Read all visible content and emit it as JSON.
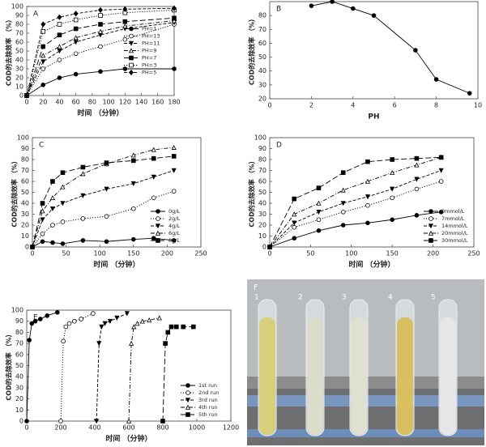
{
  "chart_data": [
    {
      "type": "line",
      "label": "A",
      "xlabel": "时间 （分钟）",
      "ylabel": "COD的去除效率 （%）",
      "x": [
        0,
        20,
        40,
        60,
        90,
        120,
        180
      ],
      "xlim": [
        0,
        180
      ],
      "ylim": [
        0,
        100
      ],
      "xticks": [
        0,
        20,
        40,
        60,
        80,
        100,
        120,
        140,
        160,
        180
      ],
      "yticks": [
        0,
        10,
        20,
        30,
        40,
        50,
        60,
        70,
        80,
        90,
        100
      ],
      "grid": false,
      "legend": "center right",
      "series": [
        {
          "name": "PH=1",
          "color": "#000000",
          "marker": "circle-filled",
          "dash": "solid",
          "values": [
            0,
            12,
            20,
            24,
            27,
            30,
            30
          ]
        },
        {
          "name": "PH=13",
          "color": "#000000",
          "marker": "circle-open",
          "dash": "dotted",
          "values": [
            0,
            30,
            40,
            47,
            55,
            63,
            80
          ]
        },
        {
          "name": "PH=11",
          "color": "#000000",
          "marker": "triangle-down-filled",
          "dash": "dashed",
          "values": [
            0,
            38,
            50,
            60,
            68,
            75,
            82
          ]
        },
        {
          "name": "PH=9",
          "color": "#000000",
          "marker": "triangle-up-open",
          "dash": "dashdot",
          "values": [
            0,
            45,
            55,
            65,
            72,
            78,
            84
          ]
        },
        {
          "name": "PH=7",
          "color": "#000000",
          "marker": "square-filled",
          "dash": "longdash",
          "values": [
            0,
            55,
            68,
            75,
            80,
            83,
            87
          ]
        },
        {
          "name": "PH=3",
          "color": "#000000",
          "marker": "square-open",
          "dash": "dotted",
          "values": [
            0,
            72,
            80,
            85,
            90,
            93,
            96
          ]
        },
        {
          "name": "PH=5",
          "color": "#000000",
          "marker": "diamond-filled",
          "dash": "dashed",
          "values": [
            0,
            80,
            88,
            92,
            96,
            97,
            98
          ]
        }
      ]
    },
    {
      "type": "line",
      "label": "B",
      "xlabel": "PH",
      "ylabel": "COD的去除效率 （%）",
      "x": [
        2,
        3,
        4,
        5,
        7,
        8,
        9.6
      ],
      "xlim": [
        0,
        10
      ],
      "ylim": [
        20,
        90
      ],
      "xticks": [
        0,
        2,
        4,
        6,
        8,
        10
      ],
      "yticks": [
        20,
        30,
        40,
        50,
        60,
        70,
        80
      ],
      "grid": false,
      "series": [
        {
          "color": "#000000",
          "marker": "circle-filled",
          "dash": "solid",
          "values": [
            87,
            90,
            85,
            80,
            55,
            34,
            24
          ]
        }
      ]
    },
    {
      "type": "line",
      "label": "C",
      "xlabel": "时间 （分钟）",
      "ylabel": "COD的去除效率 （%）",
      "x": [
        0,
        15,
        30,
        45,
        75,
        110,
        150,
        180,
        210
      ],
      "xlim": [
        0,
        250
      ],
      "ylim": [
        0,
        100
      ],
      "xticks": [
        0,
        50,
        100,
        150,
        200,
        250
      ],
      "yticks": [
        0,
        10,
        20,
        30,
        40,
        50,
        60,
        70,
        80,
        90,
        100
      ],
      "grid": false,
      "legend": "lower right",
      "series": [
        {
          "name": "0g/L",
          "color": "#000000",
          "marker": "circle-filled",
          "dash": "solid",
          "values": [
            0,
            5,
            4,
            3,
            6,
            5,
            7,
            8,
            6
          ]
        },
        {
          "name": "2g/L",
          "color": "#000000",
          "marker": "circle-open",
          "dash": "dotted",
          "values": [
            0,
            12,
            20,
            23,
            26,
            28,
            35,
            45,
            51
          ]
        },
        {
          "name": "4g/L",
          "color": "#000000",
          "marker": "triangle-down-filled",
          "dash": "dashed",
          "values": [
            0,
            25,
            35,
            40,
            47,
            53,
            58,
            64,
            70
          ]
        },
        {
          "name": "6g/L",
          "color": "#000000",
          "marker": "triangle-up-open",
          "dash": "dashdot",
          "values": [
            0,
            33,
            45,
            55,
            67,
            76,
            84,
            89,
            91
          ]
        },
        {
          "name": "8g/L",
          "color": "#000000",
          "marker": "square-filled",
          "dash": "longdash",
          "values": [
            0,
            40,
            60,
            68,
            73,
            77,
            79,
            81,
            83
          ]
        }
      ]
    },
    {
      "type": "line",
      "label": "D",
      "xlabel": "时间 （分钟）",
      "ylabel": "COD的去除效率 （%）",
      "x": [
        0,
        30,
        60,
        90,
        120,
        150,
        180,
        210
      ],
      "xlim": [
        0,
        250
      ],
      "ylim": [
        0,
        100
      ],
      "xticks": [
        0,
        50,
        100,
        150,
        200,
        250
      ],
      "yticks": [
        0,
        10,
        20,
        30,
        40,
        50,
        60,
        70,
        80,
        90,
        100
      ],
      "grid": false,
      "legend": "lower right",
      "series": [
        {
          "name": "0mmol/L",
          "color": "#000000",
          "marker": "circle-filled",
          "dash": "solid",
          "values": [
            0,
            8,
            15,
            20,
            22,
            25,
            29,
            32
          ]
        },
        {
          "name": "7mmol/L",
          "color": "#000000",
          "marker": "circle-open",
          "dash": "dotted",
          "values": [
            0,
            18,
            25,
            32,
            38,
            45,
            53,
            60
          ]
        },
        {
          "name": "14mmol/L",
          "color": "#000000",
          "marker": "triangle-down-filled",
          "dash": "dashed",
          "values": [
            0,
            22,
            32,
            40,
            46,
            53,
            62,
            70
          ]
        },
        {
          "name": "20mmol/L",
          "color": "#000000",
          "marker": "triangle-up-open",
          "dash": "dashdot",
          "values": [
            0,
            30,
            40,
            52,
            60,
            68,
            75,
            82
          ]
        },
        {
          "name": "30mmol/L",
          "color": "#000000",
          "marker": "square-filled",
          "dash": "longdash",
          "values": [
            0,
            44,
            54,
            68,
            78,
            80,
            81,
            82
          ]
        }
      ]
    },
    {
      "type": "line",
      "label": "E",
      "xlabel": "时间 （分钟）",
      "ylabel": "COD的去除效率 （%）",
      "xlim": [
        0,
        1200
      ],
      "ylim": [
        0,
        100
      ],
      "xticks": [
        0,
        200,
        400,
        600,
        800,
        1000,
        1200
      ],
      "yticks": [
        0,
        10,
        20,
        30,
        40,
        50,
        60,
        70,
        80,
        90,
        100
      ],
      "grid": false,
      "legend": "lower right",
      "series": [
        {
          "name": "1st run",
          "color": "#000000",
          "marker": "circle-filled",
          "dash": "solid",
          "x": [
            0,
            15,
            30,
            50,
            80,
            120,
            180
          ],
          "values": [
            0,
            73,
            88,
            90,
            92,
            95,
            98
          ]
        },
        {
          "name": "2nd run",
          "color": "#000000",
          "marker": "circle-open",
          "dash": "dotted",
          "x": [
            200,
            215,
            230,
            250,
            280,
            320,
            390
          ],
          "values": [
            0,
            72,
            85,
            88,
            90,
            92,
            97
          ]
        },
        {
          "name": "3rd run",
          "color": "#000000",
          "marker": "triangle-down-filled",
          "dash": "dashed",
          "x": [
            410,
            425,
            440,
            460,
            490,
            530,
            590
          ],
          "values": [
            0,
            70,
            85,
            88,
            90,
            93,
            97
          ]
        },
        {
          "name": "4th run",
          "color": "#000000",
          "marker": "triangle-up-open",
          "dash": "dashdot",
          "x": [
            600,
            615,
            630,
            650,
            680,
            720,
            780
          ],
          "values": [
            0,
            70,
            85,
            88,
            90,
            91,
            93
          ]
        },
        {
          "name": "5th run",
          "color": "#000000",
          "marker": "square-filled",
          "dash": "longdash",
          "x": [
            800,
            815,
            830,
            850,
            880,
            920,
            980
          ],
          "values": [
            0,
            70,
            80,
            85,
            85,
            85,
            85
          ]
        }
      ]
    }
  ],
  "photo": {
    "label": "F",
    "tubes": [
      "1",
      "2",
      "3",
      "4",
      "5"
    ]
  }
}
